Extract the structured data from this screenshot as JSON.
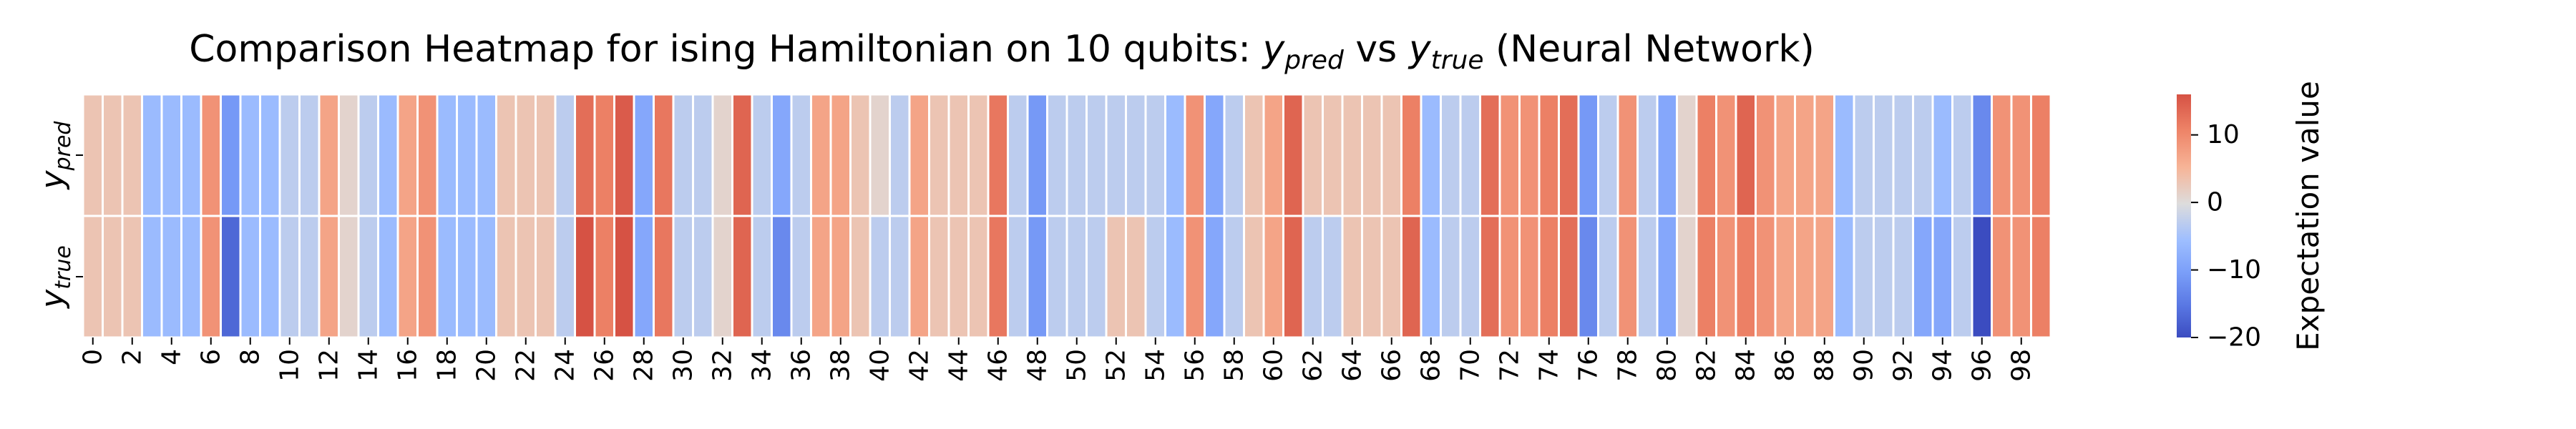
{
  "chart_data": {
    "type": "heatmap",
    "title": {
      "prefix": "Comparison Heatmap for ising Hamiltonian on 10 qubits: ",
      "var1": "y",
      "var1_sub": "pred",
      "mid": " vs ",
      "var2": "y",
      "var2_sub": "true",
      "suffix": " (Neural Network)"
    },
    "rows": [
      {
        "label": "y",
        "sub": "pred"
      },
      {
        "label": "y",
        "sub": "true"
      }
    ],
    "x": [
      0,
      1,
      2,
      3,
      4,
      5,
      6,
      7,
      8,
      9,
      10,
      11,
      12,
      13,
      14,
      15,
      16,
      17,
      18,
      19,
      20,
      21,
      22,
      23,
      24,
      25,
      26,
      27,
      28,
      29,
      30,
      31,
      32,
      33,
      34,
      35,
      36,
      37,
      38,
      39,
      40,
      41,
      42,
      43,
      44,
      45,
      46,
      47,
      48,
      49,
      50,
      51,
      52,
      53,
      54,
      55,
      56,
      57,
      58,
      59,
      60,
      61,
      62,
      63,
      64,
      65,
      66,
      67,
      68,
      69,
      70,
      71,
      72,
      73,
      74,
      75,
      76,
      77,
      78,
      79,
      80,
      81,
      82,
      83,
      84,
      85,
      86,
      87,
      88,
      89,
      90,
      91,
      92,
      93,
      94,
      95,
      96,
      97,
      98,
      99
    ],
    "xtick_labels": [
      "0",
      "2",
      "4",
      "6",
      "8",
      "10",
      "12",
      "14",
      "16",
      "18",
      "20",
      "22",
      "24",
      "26",
      "28",
      "30",
      "32",
      "34",
      "36",
      "38",
      "40",
      "42",
      "44",
      "46",
      "48",
      "50",
      "52",
      "54",
      "56",
      "58",
      "60",
      "62",
      "64",
      "66",
      "68",
      "70",
      "72",
      "74",
      "76",
      "78",
      "80",
      "82",
      "84",
      "86",
      "88",
      "90",
      "92",
      "94",
      "96",
      "98"
    ],
    "values": [
      [
        3,
        3,
        3,
        -6,
        -6,
        -6,
        9,
        -11,
        -6,
        -6,
        -3,
        -3,
        7,
        1,
        -3,
        -6,
        7,
        9,
        -6,
        -6,
        -6,
        3,
        3,
        3,
        -3,
        13,
        11,
        15,
        -9,
        12,
        -3,
        -3,
        1,
        14,
        -3,
        -9,
        -3,
        7,
        7,
        3,
        1,
        -3,
        7,
        3,
        3,
        3,
        12,
        -3,
        -11,
        -3,
        -3,
        -3,
        -3,
        -3,
        -3,
        -6,
        9,
        -9,
        -3,
        3,
        7,
        14,
        3,
        3,
        3,
        3,
        3,
        11,
        -6,
        -3,
        -3,
        13,
        9,
        9,
        11,
        13,
        -11,
        -3,
        9,
        -3,
        -9,
        1,
        11,
        9,
        14,
        9,
        7,
        7,
        7,
        -6,
        -3,
        -3,
        -3,
        -3,
        -6,
        -3,
        -13,
        9,
        9,
        11
      ],
      [
        3,
        3,
        3,
        -6,
        -6,
        -6,
        9,
        -17,
        -6,
        -6,
        -3,
        -3,
        7,
        1,
        -3,
        -6,
        7,
        9,
        -6,
        -6,
        -6,
        3,
        3,
        3,
        -3,
        17,
        11,
        17,
        -9,
        12,
        -3,
        -3,
        1,
        14,
        -3,
        -13,
        -3,
        7,
        7,
        3,
        -3,
        -3,
        7,
        3,
        3,
        3,
        12,
        -3,
        -11,
        -3,
        -3,
        -3,
        3,
        3,
        -3,
        -6,
        9,
        -9,
        -3,
        3,
        7,
        14,
        -3,
        -3,
        3,
        3,
        3,
        14,
        -6,
        -3,
        -3,
        13,
        9,
        9,
        11,
        13,
        -13,
        -3,
        9,
        -3,
        -9,
        1,
        11,
        9,
        11,
        9,
        7,
        7,
        7,
        -6,
        -3,
        -3,
        -3,
        -9,
        -9,
        -3,
        -20,
        9,
        9,
        11
      ]
    ],
    "colorbar": {
      "label": "Expectation value",
      "min": -20,
      "max": 16,
      "ticks": [
        10,
        0,
        -10,
        -20
      ],
      "tick_labels": [
        "10",
        "0",
        "−10",
        "−20"
      ],
      "colormap": "coolwarm"
    }
  }
}
